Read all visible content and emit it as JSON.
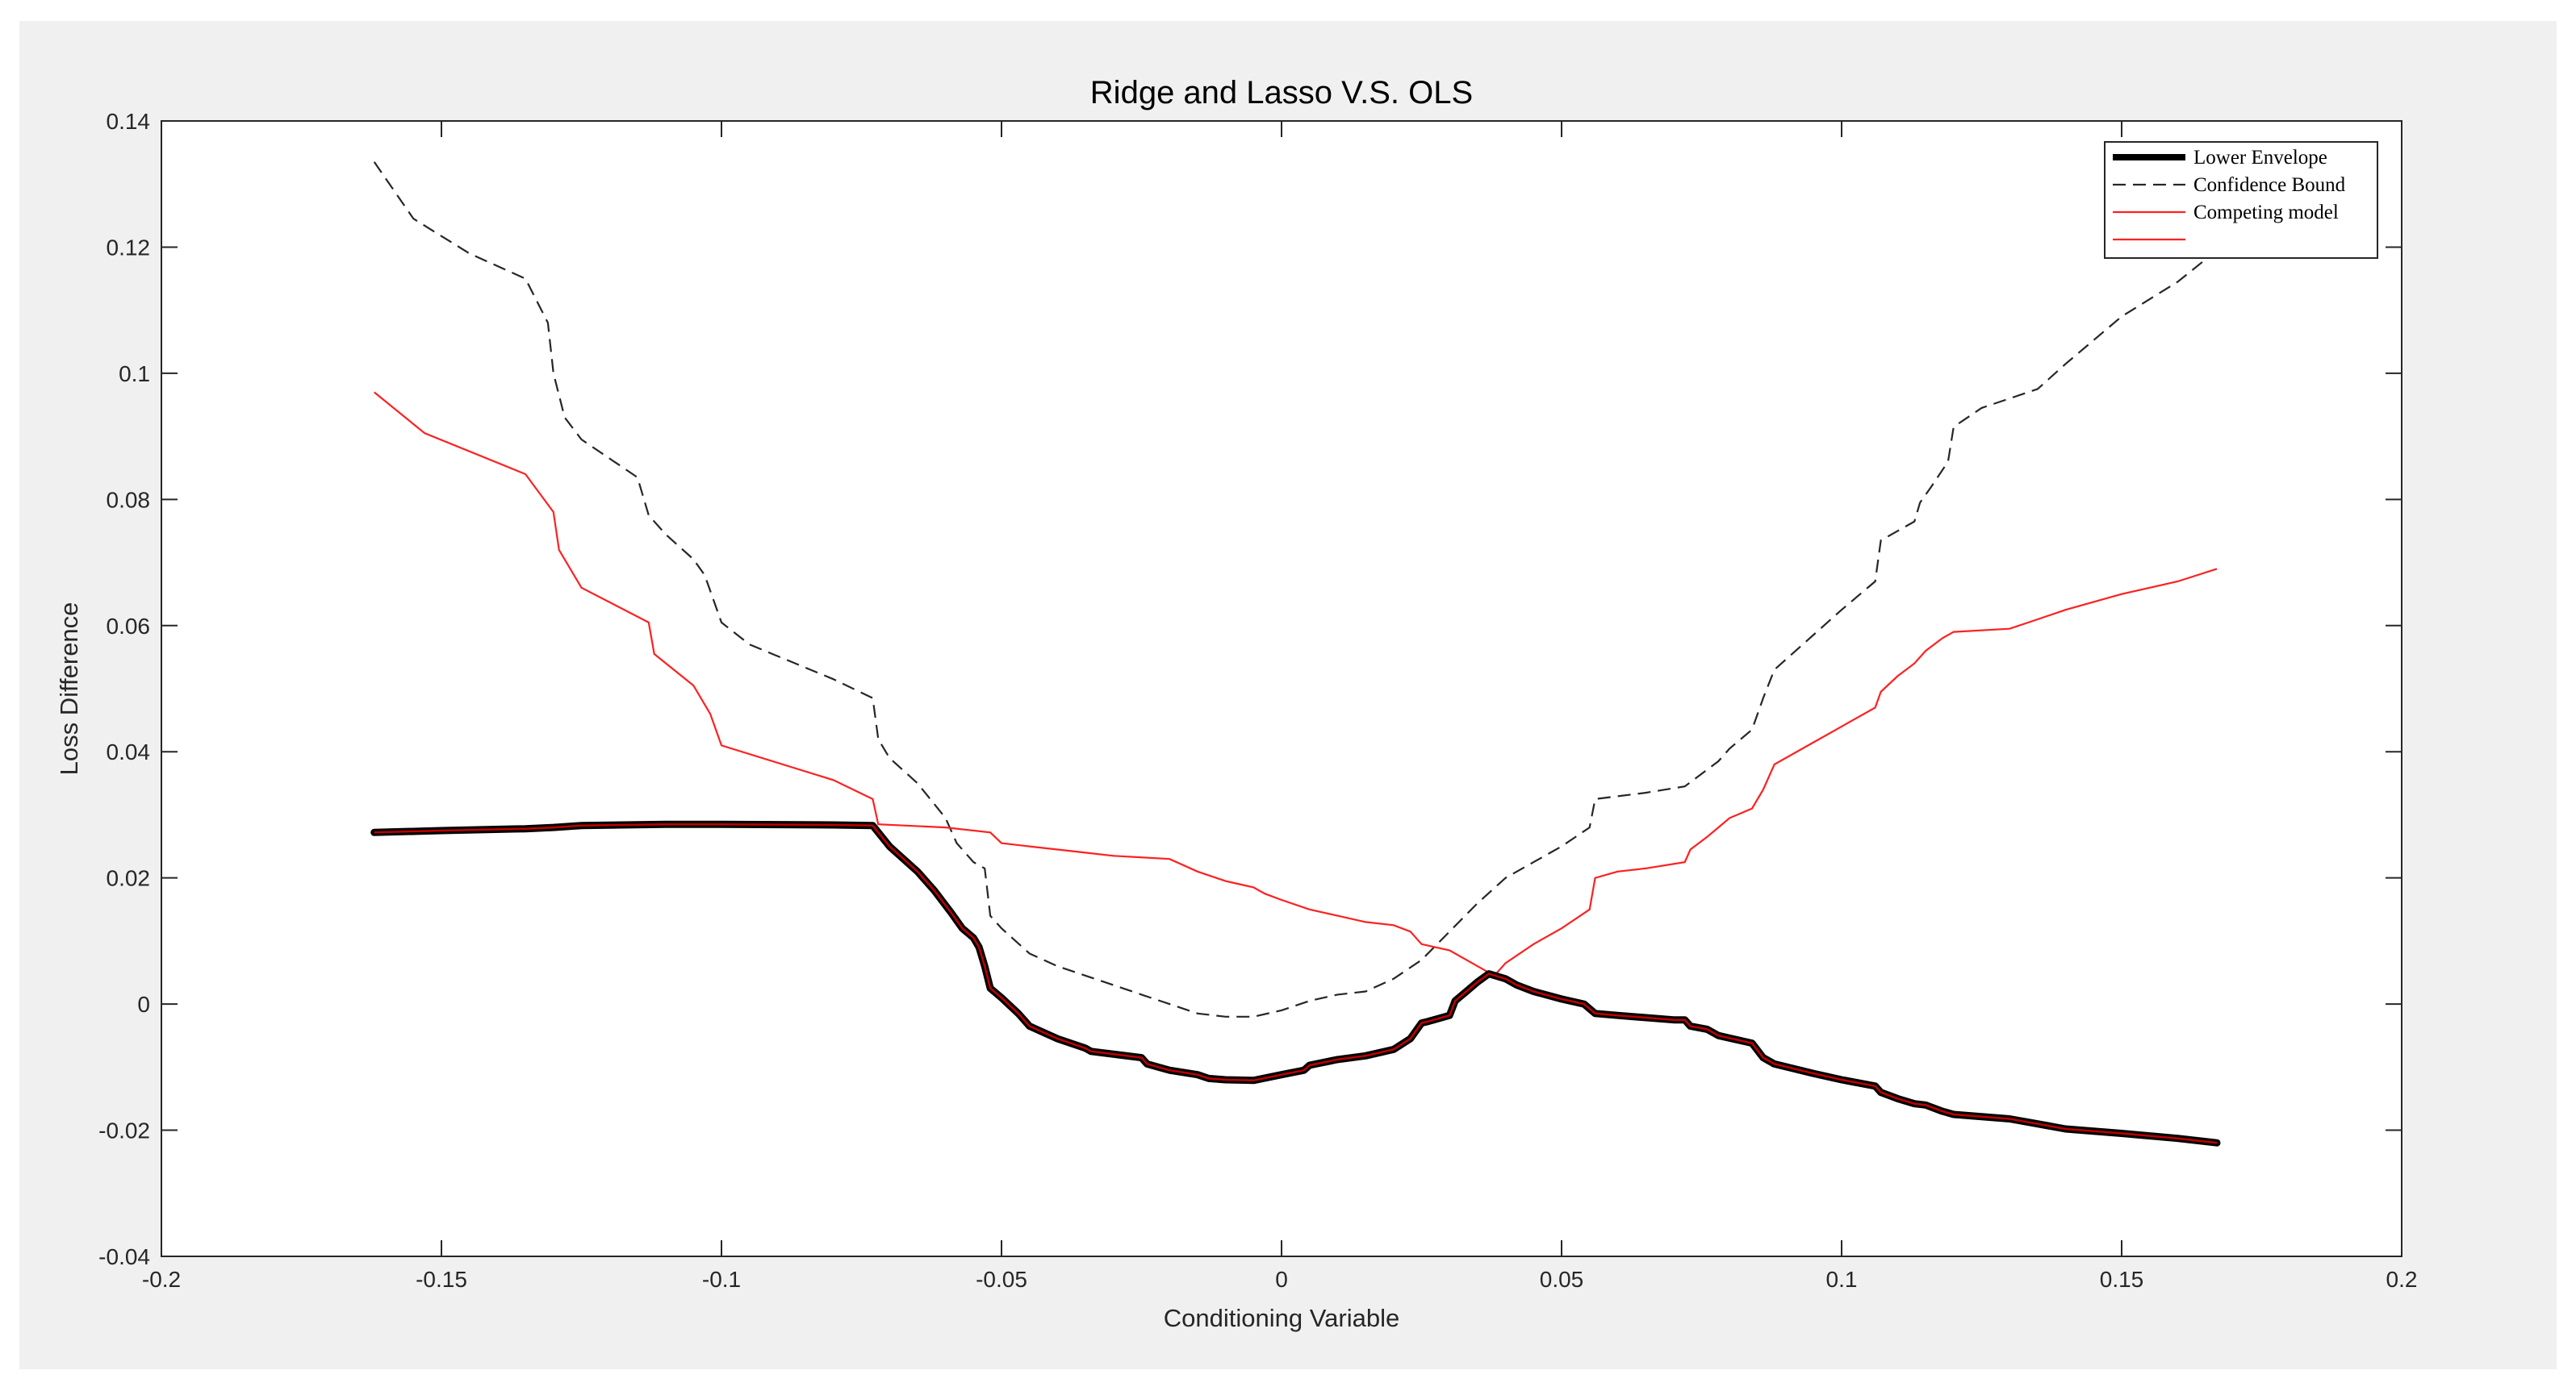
{
  "chart_data": {
    "type": "line",
    "title": "Ridge and Lasso V.S. OLS",
    "xlabel": "Conditioning Variable",
    "ylabel": "Loss Difference",
    "xlim": [
      -0.2,
      0.2
    ],
    "ylim": [
      -0.04,
      0.14
    ],
    "x_ticks": [
      -0.2,
      -0.15,
      -0.1,
      -0.05,
      0,
      0.05,
      0.1,
      0.15,
      0.2
    ],
    "x_tick_labels": [
      "-0.2",
      "-0.15",
      "-0.1",
      "-0.05",
      "0",
      "0.05",
      "0.1",
      "0.15",
      "0.2"
    ],
    "y_ticks": [
      -0.04,
      -0.02,
      0,
      0.02,
      0.04,
      0.06,
      0.08,
      0.1,
      0.12,
      0.14
    ],
    "y_tick_labels": [
      "-0.04",
      "-0.02",
      "0",
      "0.02",
      "0.04",
      "0.06",
      "0.08",
      "0.1",
      "0.12",
      "0.14"
    ],
    "grid": false,
    "legend_position": "top-right",
    "colors": {
      "lower_envelope": "#000000",
      "lower_envelope_core": "#c00000",
      "confidence_bound": "#262626",
      "competing_model": "#ff2020"
    },
    "series": [
      {
        "name": "Lower Envelope",
        "style": "solid-thick",
        "x": [
          -0.162,
          -0.15,
          -0.135,
          -0.13,
          -0.125,
          -0.11,
          -0.1,
          -0.08,
          -0.073,
          -0.07,
          -0.065,
          -0.062,
          -0.059,
          -0.057,
          -0.055,
          -0.054,
          -0.053,
          -0.052,
          -0.05,
          -0.047,
          -0.045,
          -0.04,
          -0.035,
          -0.034,
          -0.025,
          -0.024,
          -0.02,
          -0.015,
          -0.013,
          -0.01,
          -0.005,
          0,
          0.004,
          0.005,
          0.01,
          0.015,
          0.02,
          0.023,
          0.025,
          0.026,
          0.03,
          0.031,
          0.033,
          0.035,
          0.037,
          0.04,
          0.042,
          0.045,
          0.05,
          0.054,
          0.056,
          0.06,
          0.07,
          0.072,
          0.073,
          0.076,
          0.078,
          0.082,
          0.084,
          0.086,
          0.088,
          0.095,
          0.1,
          0.106,
          0.107,
          0.11,
          0.113,
          0.115,
          0.118,
          0.12,
          0.13,
          0.135,
          0.14,
          0.15,
          0.16,
          0.167
        ],
        "y": [
          0.0272,
          0.0275,
          0.0278,
          0.028,
          0.0283,
          0.0285,
          0.0285,
          0.0284,
          0.0283,
          0.025,
          0.021,
          0.018,
          0.0145,
          0.012,
          0.0105,
          0.009,
          0.006,
          0.0025,
          0.001,
          -0.0015,
          -0.0035,
          -0.0055,
          -0.007,
          -0.0075,
          -0.0085,
          -0.0095,
          -0.0105,
          -0.0112,
          -0.0118,
          -0.012,
          -0.0121,
          -0.0112,
          -0.0105,
          -0.0097,
          -0.0088,
          -0.0082,
          -0.0072,
          -0.0055,
          -0.003,
          -0.0028,
          -0.0018,
          0.0005,
          0.002,
          0.0035,
          0.0048,
          0.004,
          0.003,
          0.002,
          0.0008,
          0.0,
          -0.0015,
          -0.0018,
          -0.0025,
          -0.0025,
          -0.0035,
          -0.004,
          -0.005,
          -0.0058,
          -0.0062,
          -0.0085,
          -0.0095,
          -0.011,
          -0.012,
          -0.013,
          -0.014,
          -0.015,
          -0.0158,
          -0.016,
          -0.017,
          -0.0175,
          -0.0182,
          -0.019,
          -0.0198,
          -0.0205,
          -0.0213,
          -0.022
        ]
      },
      {
        "name": "Confidence Bound",
        "style": "dashed",
        "x": [
          -0.162,
          -0.155,
          -0.145,
          -0.135,
          -0.131,
          -0.13,
          -0.128,
          -0.125,
          -0.115,
          -0.113,
          -0.112,
          -0.11,
          -0.105,
          -0.103,
          -0.1,
          -0.095,
          -0.08,
          -0.073,
          -0.072,
          -0.07,
          -0.065,
          -0.06,
          -0.058,
          -0.055,
          -0.053,
          -0.052,
          -0.05,
          -0.045,
          -0.04,
          -0.035,
          -0.03,
          -0.025,
          -0.02,
          -0.015,
          -0.01,
          -0.005,
          0,
          0.005,
          0.01,
          0.015,
          0.02,
          0.025,
          0.03,
          0.035,
          0.04,
          0.045,
          0.05,
          0.055,
          0.056,
          0.065,
          0.072,
          0.075,
          0.078,
          0.08,
          0.084,
          0.086,
          0.088,
          0.1,
          0.106,
          0.107,
          0.113,
          0.114,
          0.116,
          0.119,
          0.12,
          0.125,
          0.135,
          0.14,
          0.15,
          0.16,
          0.167
        ],
        "y": [
          0.1335,
          0.1245,
          0.119,
          0.115,
          0.108,
          0.1,
          0.093,
          0.0895,
          0.0835,
          0.0775,
          0.0765,
          0.0745,
          0.0705,
          0.068,
          0.0605,
          0.057,
          0.0515,
          0.0485,
          0.042,
          0.039,
          0.035,
          0.0295,
          0.0255,
          0.0225,
          0.0215,
          0.014,
          0.012,
          0.008,
          0.006,
          0.0045,
          0.003,
          0.0015,
          0.0,
          -0.0015,
          -0.002,
          -0.002,
          -0.001,
          0.0005,
          0.0015,
          0.002,
          0.004,
          0.007,
          0.0115,
          0.016,
          0.02,
          0.0225,
          0.025,
          0.028,
          0.0325,
          0.0335,
          0.0345,
          0.0365,
          0.0385,
          0.0405,
          0.0435,
          0.0485,
          0.053,
          0.0625,
          0.067,
          0.0735,
          0.0765,
          0.0795,
          0.082,
          0.086,
          0.0915,
          0.0945,
          0.0975,
          0.1015,
          0.109,
          0.1145,
          0.1195
        ]
      },
      {
        "name": "Competing model",
        "style": "solid-red",
        "x": [
          -0.162,
          -0.153,
          -0.135,
          -0.13,
          -0.129,
          -0.125,
          -0.113,
          -0.112,
          -0.105,
          -0.102,
          -0.1,
          -0.08,
          -0.073,
          -0.072,
          -0.06,
          -0.052,
          -0.05,
          -0.045,
          -0.035,
          -0.03,
          -0.02,
          -0.015,
          -0.01,
          -0.005,
          -0.003,
          0,
          0.005,
          0.01,
          0.015,
          0.02,
          0.023,
          0.025,
          0.03,
          0.035,
          0.038,
          0.04,
          0.045,
          0.05,
          0.055,
          0.056,
          0.06,
          0.065,
          0.072,
          0.073,
          0.076,
          0.078,
          0.08,
          0.084,
          0.086,
          0.088,
          0.095,
          0.1,
          0.106,
          0.107,
          0.11,
          0.113,
          0.115,
          0.118,
          0.12,
          0.13,
          0.135,
          0.14,
          0.15,
          0.16,
          0.167
        ],
        "y": [
          0.097,
          0.0905,
          0.084,
          0.078,
          0.072,
          0.066,
          0.0605,
          0.0555,
          0.0505,
          0.046,
          0.041,
          0.0355,
          0.0325,
          0.0285,
          0.028,
          0.0272,
          0.0255,
          0.025,
          0.024,
          0.0235,
          0.023,
          0.021,
          0.0195,
          0.0185,
          0.0175,
          0.0165,
          0.015,
          0.014,
          0.013,
          0.0125,
          0.0115,
          0.0095,
          0.0085,
          0.006,
          0.0045,
          0.0065,
          0.0095,
          0.012,
          0.015,
          0.02,
          0.021,
          0.0215,
          0.0225,
          0.0245,
          0.0265,
          0.028,
          0.0295,
          0.031,
          0.034,
          0.038,
          0.0415,
          0.044,
          0.047,
          0.0495,
          0.052,
          0.054,
          0.056,
          0.058,
          0.059,
          0.0595,
          0.061,
          0.0625,
          0.065,
          0.067,
          0.069
        ]
      }
    ],
    "legend": [
      {
        "label": "Lower Envelope",
        "style": "solid-thick"
      },
      {
        "label": "Confidence Bound",
        "style": "dashed"
      },
      {
        "label": "Competing model",
        "style": "solid-red"
      },
      {
        "label": "",
        "style": "solid-red"
      }
    ]
  }
}
